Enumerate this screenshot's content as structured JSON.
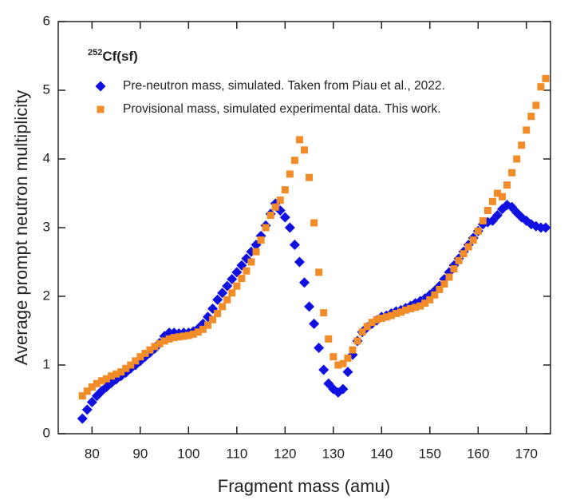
{
  "chart_data": {
    "type": "scatter",
    "xlabel": "Fragment mass (amu)",
    "ylabel": "Average prompt neutron multiplicity",
    "annotation": {
      "superscript": "252",
      "text": "Cf(sf)"
    },
    "xlim": [
      73,
      175
    ],
    "xticks": [
      80,
      90,
      100,
      110,
      120,
      130,
      140,
      150,
      160,
      170
    ],
    "ylim": [
      0,
      6
    ],
    "yticks": [
      0,
      1,
      2,
      3,
      4,
      5,
      6
    ],
    "legend": "upper left",
    "series": [
      {
        "name": "Pre-neutron mass, simulated. Taken from Piau et al., 2022.",
        "color": "#1010e0",
        "marker": "diamond",
        "x": [
          78,
          79,
          80,
          81,
          82,
          83,
          84,
          85,
          86,
          87,
          88,
          89,
          90,
          91,
          92,
          93,
          94,
          95,
          96,
          97,
          98,
          99,
          100,
          101,
          102,
          103,
          104,
          105,
          106,
          107,
          108,
          109,
          110,
          111,
          112,
          113,
          114,
          115,
          116,
          117,
          118,
          119,
          120,
          121,
          122,
          123,
          124,
          125,
          126,
          127,
          128,
          129,
          130,
          131,
          132,
          133,
          134,
          135,
          136,
          137,
          138,
          139,
          140,
          141,
          142,
          143,
          144,
          145,
          146,
          147,
          148,
          149,
          150,
          151,
          152,
          153,
          154,
          155,
          156,
          157,
          158,
          159,
          160,
          161,
          162,
          163,
          164,
          165,
          166,
          167,
          168,
          169,
          170,
          171,
          172,
          173,
          174
        ],
        "values": [
          0.22,
          0.35,
          0.46,
          0.55,
          0.62,
          0.68,
          0.74,
          0.79,
          0.84,
          0.89,
          0.95,
          1.0,
          1.06,
          1.12,
          1.18,
          1.24,
          1.32,
          1.42,
          1.47,
          1.47,
          1.46,
          1.47,
          1.47,
          1.49,
          1.53,
          1.6,
          1.7,
          1.82,
          1.95,
          2.05,
          2.15,
          2.25,
          2.35,
          2.45,
          2.55,
          2.65,
          2.75,
          2.88,
          3.03,
          3.2,
          3.35,
          3.25,
          3.15,
          3.0,
          2.75,
          2.5,
          2.2,
          1.85,
          1.6,
          1.25,
          0.93,
          0.73,
          0.65,
          0.6,
          0.65,
          0.9,
          1.15,
          1.35,
          1.48,
          1.55,
          1.6,
          1.65,
          1.7,
          1.72,
          1.75,
          1.78,
          1.8,
          1.83,
          1.86,
          1.9,
          1.93,
          1.97,
          2.02,
          2.08,
          2.15,
          2.25,
          2.35,
          2.45,
          2.55,
          2.65,
          2.75,
          2.85,
          2.95,
          3.05,
          3.08,
          3.1,
          3.18,
          3.27,
          3.33,
          3.3,
          3.22,
          3.15,
          3.1,
          3.05,
          3.02,
          3.0,
          3.0
        ]
      },
      {
        "name": "Provisional mass, simulated experimental data. This work.",
        "color": "#f28c28",
        "marker": "square",
        "x": [
          78,
          79,
          80,
          81,
          82,
          83,
          84,
          85,
          86,
          87,
          88,
          89,
          90,
          91,
          92,
          93,
          94,
          95,
          96,
          97,
          98,
          99,
          100,
          101,
          102,
          103,
          104,
          105,
          106,
          107,
          108,
          109,
          110,
          111,
          112,
          113,
          114,
          115,
          116,
          117,
          118,
          119,
          120,
          121,
          122,
          123,
          124,
          125,
          126,
          127,
          128,
          129,
          130,
          131,
          132,
          133,
          134,
          135,
          136,
          137,
          138,
          139,
          140,
          141,
          142,
          143,
          144,
          145,
          146,
          147,
          148,
          149,
          150,
          151,
          152,
          153,
          154,
          155,
          156,
          157,
          158,
          159,
          160,
          161,
          162,
          163,
          164,
          165,
          166,
          167,
          168,
          169,
          170,
          171,
          172,
          173,
          174
        ],
        "values": [
          0.55,
          0.62,
          0.68,
          0.73,
          0.77,
          0.8,
          0.84,
          0.87,
          0.9,
          0.95,
          1.0,
          1.06,
          1.12,
          1.17,
          1.22,
          1.27,
          1.31,
          1.35,
          1.38,
          1.4,
          1.41,
          1.42,
          1.43,
          1.45,
          1.48,
          1.52,
          1.58,
          1.66,
          1.75,
          1.85,
          1.95,
          2.05,
          2.15,
          2.26,
          2.37,
          2.5,
          2.65,
          2.82,
          3.0,
          3.18,
          3.3,
          3.4,
          3.55,
          3.78,
          3.98,
          4.28,
          4.13,
          3.73,
          3.07,
          2.35,
          1.76,
          1.38,
          1.12,
          1.0,
          1.02,
          1.1,
          1.22,
          1.35,
          1.48,
          1.56,
          1.62,
          1.66,
          1.68,
          1.7,
          1.72,
          1.75,
          1.77,
          1.8,
          1.82,
          1.84,
          1.86,
          1.9,
          1.95,
          2.02,
          2.1,
          2.18,
          2.28,
          2.4,
          2.52,
          2.62,
          2.72,
          2.82,
          2.95,
          3.1,
          3.25,
          3.38,
          3.5,
          3.45,
          3.62,
          3.8,
          4.0,
          4.2,
          4.42,
          4.62,
          4.78,
          5.05,
          5.17
        ]
      }
    ]
  }
}
